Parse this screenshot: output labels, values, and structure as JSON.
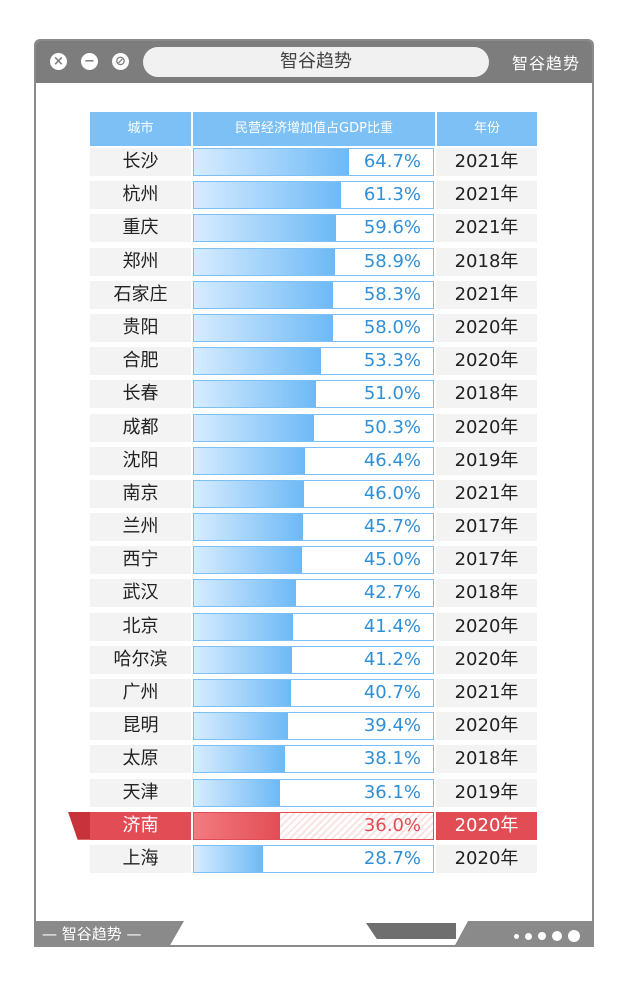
{
  "window": {
    "title": "智谷趋势",
    "brand": "智谷趋势",
    "footer_brand": "— 智谷趋势 —"
  },
  "table": {
    "headers": {
      "city": "城市",
      "share": "民营经济增加值占GDP比重",
      "year": "年份"
    }
  },
  "colors": {
    "header": "#7cc0f5",
    "bar": "#6db9f6",
    "highlight": "#e24d55",
    "value_text": "#2f90d8"
  },
  "chart_data": {
    "type": "bar",
    "title": "",
    "xlabel": "城市",
    "ylabel": "民营经济增加值占GDP比重",
    "ylim": [
      0,
      100
    ],
    "highlight": "济南",
    "categories": [
      "长沙",
      "杭州",
      "重庆",
      "郑州",
      "石家庄",
      "贵阳",
      "合肥",
      "长春",
      "成都",
      "沈阳",
      "南京",
      "兰州",
      "西宁",
      "武汉",
      "北京",
      "哈尔滨",
      "广州",
      "昆明",
      "太原",
      "天津",
      "济南",
      "上海"
    ],
    "values": [
      64.7,
      61.3,
      59.6,
      58.9,
      58.3,
      58.0,
      53.3,
      51.0,
      50.3,
      46.4,
      46.0,
      45.7,
      45.0,
      42.7,
      41.4,
      41.2,
      40.7,
      39.4,
      38.1,
      36.1,
      36.0,
      28.7
    ],
    "value_labels": [
      "64.7%",
      "61.3%",
      "59.6%",
      "58.9%",
      "58.3%",
      "58.0%",
      "53.3%",
      "51.0%",
      "50.3%",
      "46.4%",
      "46.0%",
      "45.7%",
      "45.0%",
      "42.7%",
      "41.4%",
      "41.2%",
      "40.7%",
      "39.4%",
      "38.1%",
      "36.1%",
      "36.0%",
      "28.7%"
    ],
    "years": [
      "2021年",
      "2021年",
      "2021年",
      "2018年",
      "2021年",
      "2020年",
      "2020年",
      "2018年",
      "2020年",
      "2019年",
      "2021年",
      "2017年",
      "2017年",
      "2018年",
      "2020年",
      "2020年",
      "2021年",
      "2020年",
      "2018年",
      "2019年",
      "2020年",
      "2020年"
    ]
  }
}
